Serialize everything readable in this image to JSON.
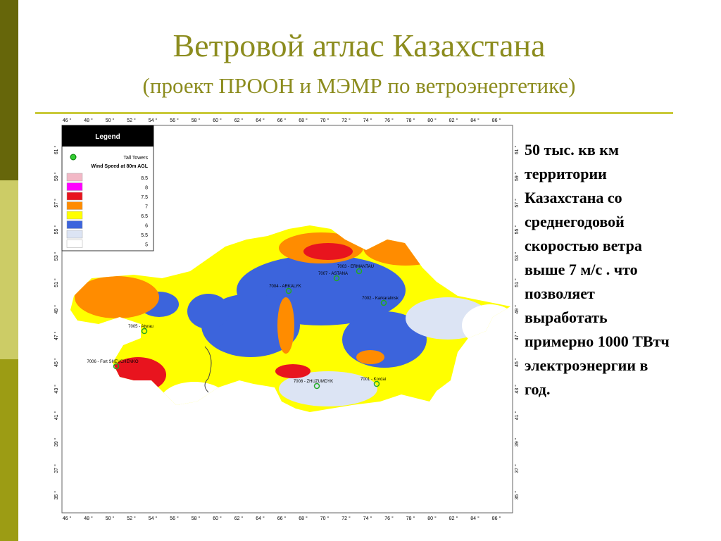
{
  "header": {
    "title": "Ветровой атлас Казахстана",
    "subtitle": "(проект ПРООН и МЭМР по ветроэнергетике)"
  },
  "body_lines": [
    "50 тыс. кв км",
    "территории",
    "Казахстана со",
    "среднегодовой",
    "скоростью ветра",
    "выше 7 м/с . что",
    "позволяет",
    "выработать",
    "примерно 1000 ТВтч",
    "электроэнергии в",
    "год."
  ],
  "map": {
    "longitude_ticks": [
      "46 °",
      "48 °",
      "50 °",
      "52 °",
      "54 °",
      "56 °",
      "58 °",
      "60 °",
      "62 °",
      "64 °",
      "66 °",
      "68 °",
      "70 °",
      "72 °",
      "74 °",
      "76 °",
      "78 °",
      "80 °",
      "82 °",
      "84 °",
      "86 °"
    ],
    "latitude_ticks": [
      "61 °",
      "59 °",
      "57 °",
      "55 °",
      "53 °",
      "51 °",
      "49 °",
      "47 °",
      "45 °",
      "43 °",
      "41 °",
      "39 °",
      "37 °",
      "35 °"
    ],
    "legend": {
      "title": "Legend",
      "towers": "Tall Towers",
      "scale_title": "Wind Speed at 80m AGL",
      "items": [
        {
          "label": "8.5",
          "color": "#f2b8c6"
        },
        {
          "label": "8",
          "color": "#ff00ff"
        },
        {
          "label": "7.5",
          "color": "#e8141e"
        },
        {
          "label": "7",
          "color": "#ff8c00"
        },
        {
          "label": "6.5",
          "color": "#ffff00"
        },
        {
          "label": "6",
          "color": "#3c64dc"
        },
        {
          "label": "5.5",
          "color": "#dce4f4"
        },
        {
          "label": "5",
          "color": "#ffffff"
        }
      ]
    },
    "stations": [
      "7003 - ERMANTAU",
      "7007 - ASTANA",
      "7004 - ARKALYK",
      "7002 - Karkaralinsk",
      "7005 - Atyrau",
      "7006 - Fort SHEVCHENKO",
      "7008 - ZHUZUMDYK",
      "7001 - Kordai"
    ]
  }
}
